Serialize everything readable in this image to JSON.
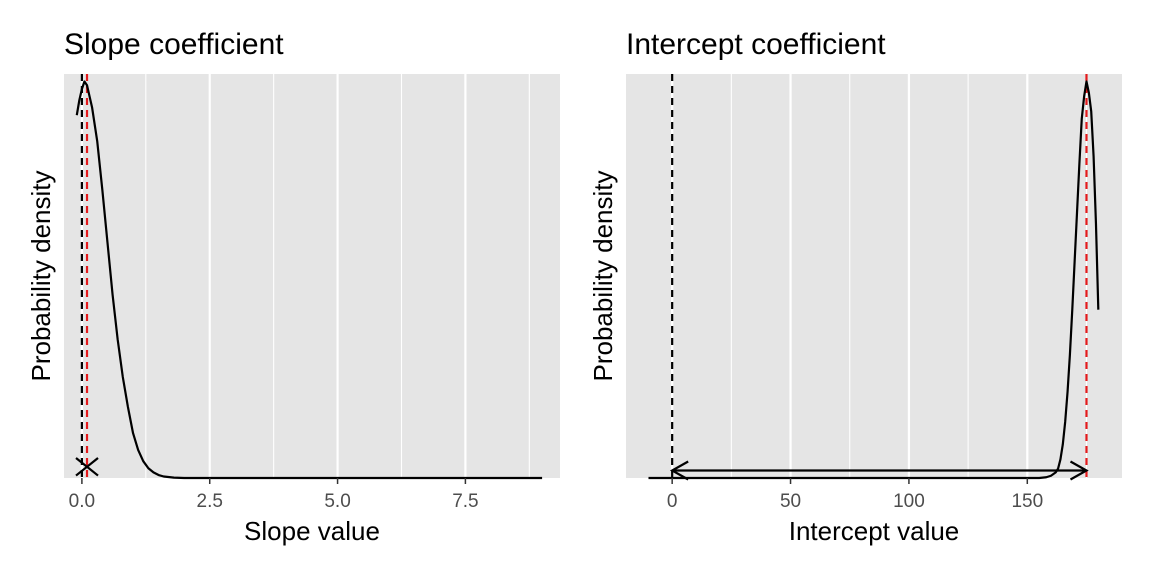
{
  "chart_data": [
    {
      "type": "line",
      "title": "Slope coefficient",
      "xlabel": "Slope value",
      "ylabel": "Probability density",
      "xlim": [
        -0.35,
        9.35
      ],
      "ylim": [
        0,
        1.08
      ],
      "x_ticks": [
        0,
        2.5,
        5,
        7.5
      ],
      "x_tick_labels": [
        "0.0",
        "2.5",
        "5.0",
        "7.5"
      ],
      "grid": true,
      "background": "#e5e5e5",
      "series": [
        {
          "color": "#000000",
          "x": [
            -0.1,
            -0.05,
            0,
            0.05,
            0.1,
            0.15,
            0.2,
            0.3,
            0.4,
            0.5,
            0.6,
            0.7,
            0.8,
            0.9,
            1.0,
            1.1,
            1.2,
            1.3,
            1.4,
            1.5,
            1.6,
            1.8,
            2.0,
            3.0,
            5.0,
            7.0,
            9.0
          ],
          "y": [
            0.97,
            1.01,
            1.04,
            1.06,
            1.05,
            1.02,
            0.99,
            0.9,
            0.77,
            0.63,
            0.49,
            0.37,
            0.27,
            0.19,
            0.12,
            0.075,
            0.045,
            0.026,
            0.015,
            0.008,
            0.004,
            0.001,
            0.0,
            0.0,
            0.0,
            0.0,
            0.0
          ]
        }
      ],
      "vlines": [
        {
          "x": 0,
          "color": "#000000",
          "style": "dashed"
        },
        {
          "x": 0.1,
          "color": "#e41a1c",
          "style": "dashed"
        }
      ],
      "annotations": [
        {
          "type": "cross",
          "x": 0.1,
          "y": 0.03
        }
      ]
    },
    {
      "type": "line",
      "title": "Intercept coefficient",
      "xlabel": "Intercept value",
      "ylabel": "Probability density",
      "xlim": [
        -19.5,
        190
      ],
      "ylim": [
        0,
        1.08
      ],
      "x_ticks": [
        0,
        50,
        100,
        150
      ],
      "x_tick_labels": [
        "0",
        "50",
        "100",
        "150"
      ],
      "grid": true,
      "background": "#e5e5e5",
      "series": [
        {
          "color": "#000000",
          "x": [
            -10,
            0,
            50,
            100,
            150,
            155,
            158,
            160,
            162,
            163,
            164,
            165,
            166,
            167,
            168,
            169,
            170,
            171,
            172,
            173,
            174,
            175,
            176,
            177,
            178,
            179,
            180
          ],
          "y": [
            0.0,
            0.0,
            0.0,
            0.0,
            0.0,
            0.0,
            0.002,
            0.006,
            0.015,
            0.025,
            0.05,
            0.09,
            0.15,
            0.23,
            0.33,
            0.45,
            0.58,
            0.71,
            0.84,
            0.96,
            1.02,
            1.06,
            1.03,
            0.98,
            0.86,
            0.68,
            0.45
          ]
        }
      ],
      "vlines": [
        {
          "x": 0,
          "color": "#000000",
          "style": "dashed"
        },
        {
          "x": 175,
          "color": "#e41a1c",
          "style": "dashed"
        }
      ],
      "annotations": [
        {
          "type": "double-arrow",
          "x_from": 0,
          "x_to": 175,
          "y": 0.02
        }
      ]
    }
  ]
}
